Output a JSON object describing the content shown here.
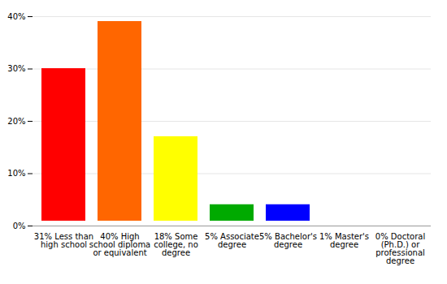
{
  "chart_data": {
    "type": "bar",
    "categories": [
      "31% Less than high school",
      "40% High school diploma or equivalent",
      "18% Some college, no degree",
      "5% Associate degree",
      "5% Bachelor's degree",
      "1% Master's degree",
      "0% Doctoral (Ph.D.) or professional degree"
    ],
    "values": [
      31,
      40,
      18,
      5,
      5,
      1,
      0
    ],
    "colors": [
      "#ff0000",
      "#ff6600",
      "#ffff00",
      "#00aa00",
      "#0000ff",
      "#9900ff",
      "#ff00ff"
    ],
    "ylim": [
      0,
      40
    ],
    "yticks": [
      {
        "value": 0,
        "label": "0%"
      },
      {
        "value": 10,
        "label": "10%"
      },
      {
        "value": 20,
        "label": "20%"
      },
      {
        "value": 30,
        "label": "30%"
      },
      {
        "value": 40,
        "label": "40%"
      }
    ],
    "grid": true
  }
}
